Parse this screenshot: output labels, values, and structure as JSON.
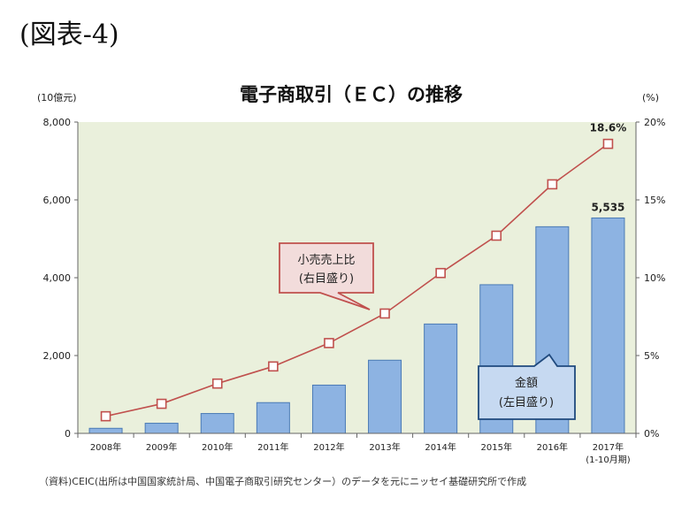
{
  "figure_label": "(図表-4)",
  "source_note": "（資料)CEIC(出所は中国国家統計局、中国電子商取引研究センター）のデータを元にニッセイ基礎研究所で作成",
  "colors": {
    "plot_bg": "#eaf0dc",
    "bar_fill": "#8db3e2",
    "bar_stroke": "#4a7ab5",
    "line": "#c0504d",
    "callout_red_fill": "#f2dcdb",
    "callout_blue_fill": "#c6d9f1",
    "callout_blue_stroke": "#1f497d"
  },
  "chart_data": {
    "type": "bar+line",
    "title": "電子商取引（ＥＣ）の推移",
    "left_unit": "(10億元)",
    "right_unit": "(%)",
    "categories": [
      "2008年",
      "2009年",
      "2010年",
      "2011年",
      "2012年",
      "2013年",
      "2014年",
      "2015年",
      "2016年",
      "2017年"
    ],
    "category_sublabels": [
      "",
      "",
      "",
      "",
      "",
      "",
      "",
      "",
      "",
      "(1-10月期)"
    ],
    "left_axis": {
      "ylim": [
        0,
        8000
      ],
      "ticks": [
        "0",
        "2,000",
        "4,000",
        "6,000",
        "8,000"
      ],
      "tick_values": [
        0,
        2000,
        4000,
        6000,
        8000
      ]
    },
    "right_axis": {
      "ylim": [
        0,
        20
      ],
      "ticks": [
        "0%",
        "5%",
        "10%",
        "15%",
        "20%"
      ],
      "tick_values": [
        0,
        5,
        10,
        15,
        20
      ]
    },
    "series": [
      {
        "name": "金額",
        "axis": "left",
        "kind": "bar",
        "values": [
          130,
          260,
          510,
          790,
          1240,
          1880,
          2810,
          3820,
          5310,
          5535
        ]
      },
      {
        "name": "小売売上比",
        "axis": "right",
        "kind": "line",
        "values": [
          1.1,
          1.9,
          3.2,
          4.3,
          5.8,
          7.7,
          10.3,
          12.7,
          16.0,
          18.6
        ]
      }
    ],
    "data_labels": {
      "bar_last": "5,535",
      "line_last": "18.6%"
    },
    "callouts": [
      {
        "line1": "小売売上比",
        "line2": "(右目盛り)"
      },
      {
        "line1": "金額",
        "line2": "(左目盛り)"
      }
    ],
    "grid": false
  }
}
